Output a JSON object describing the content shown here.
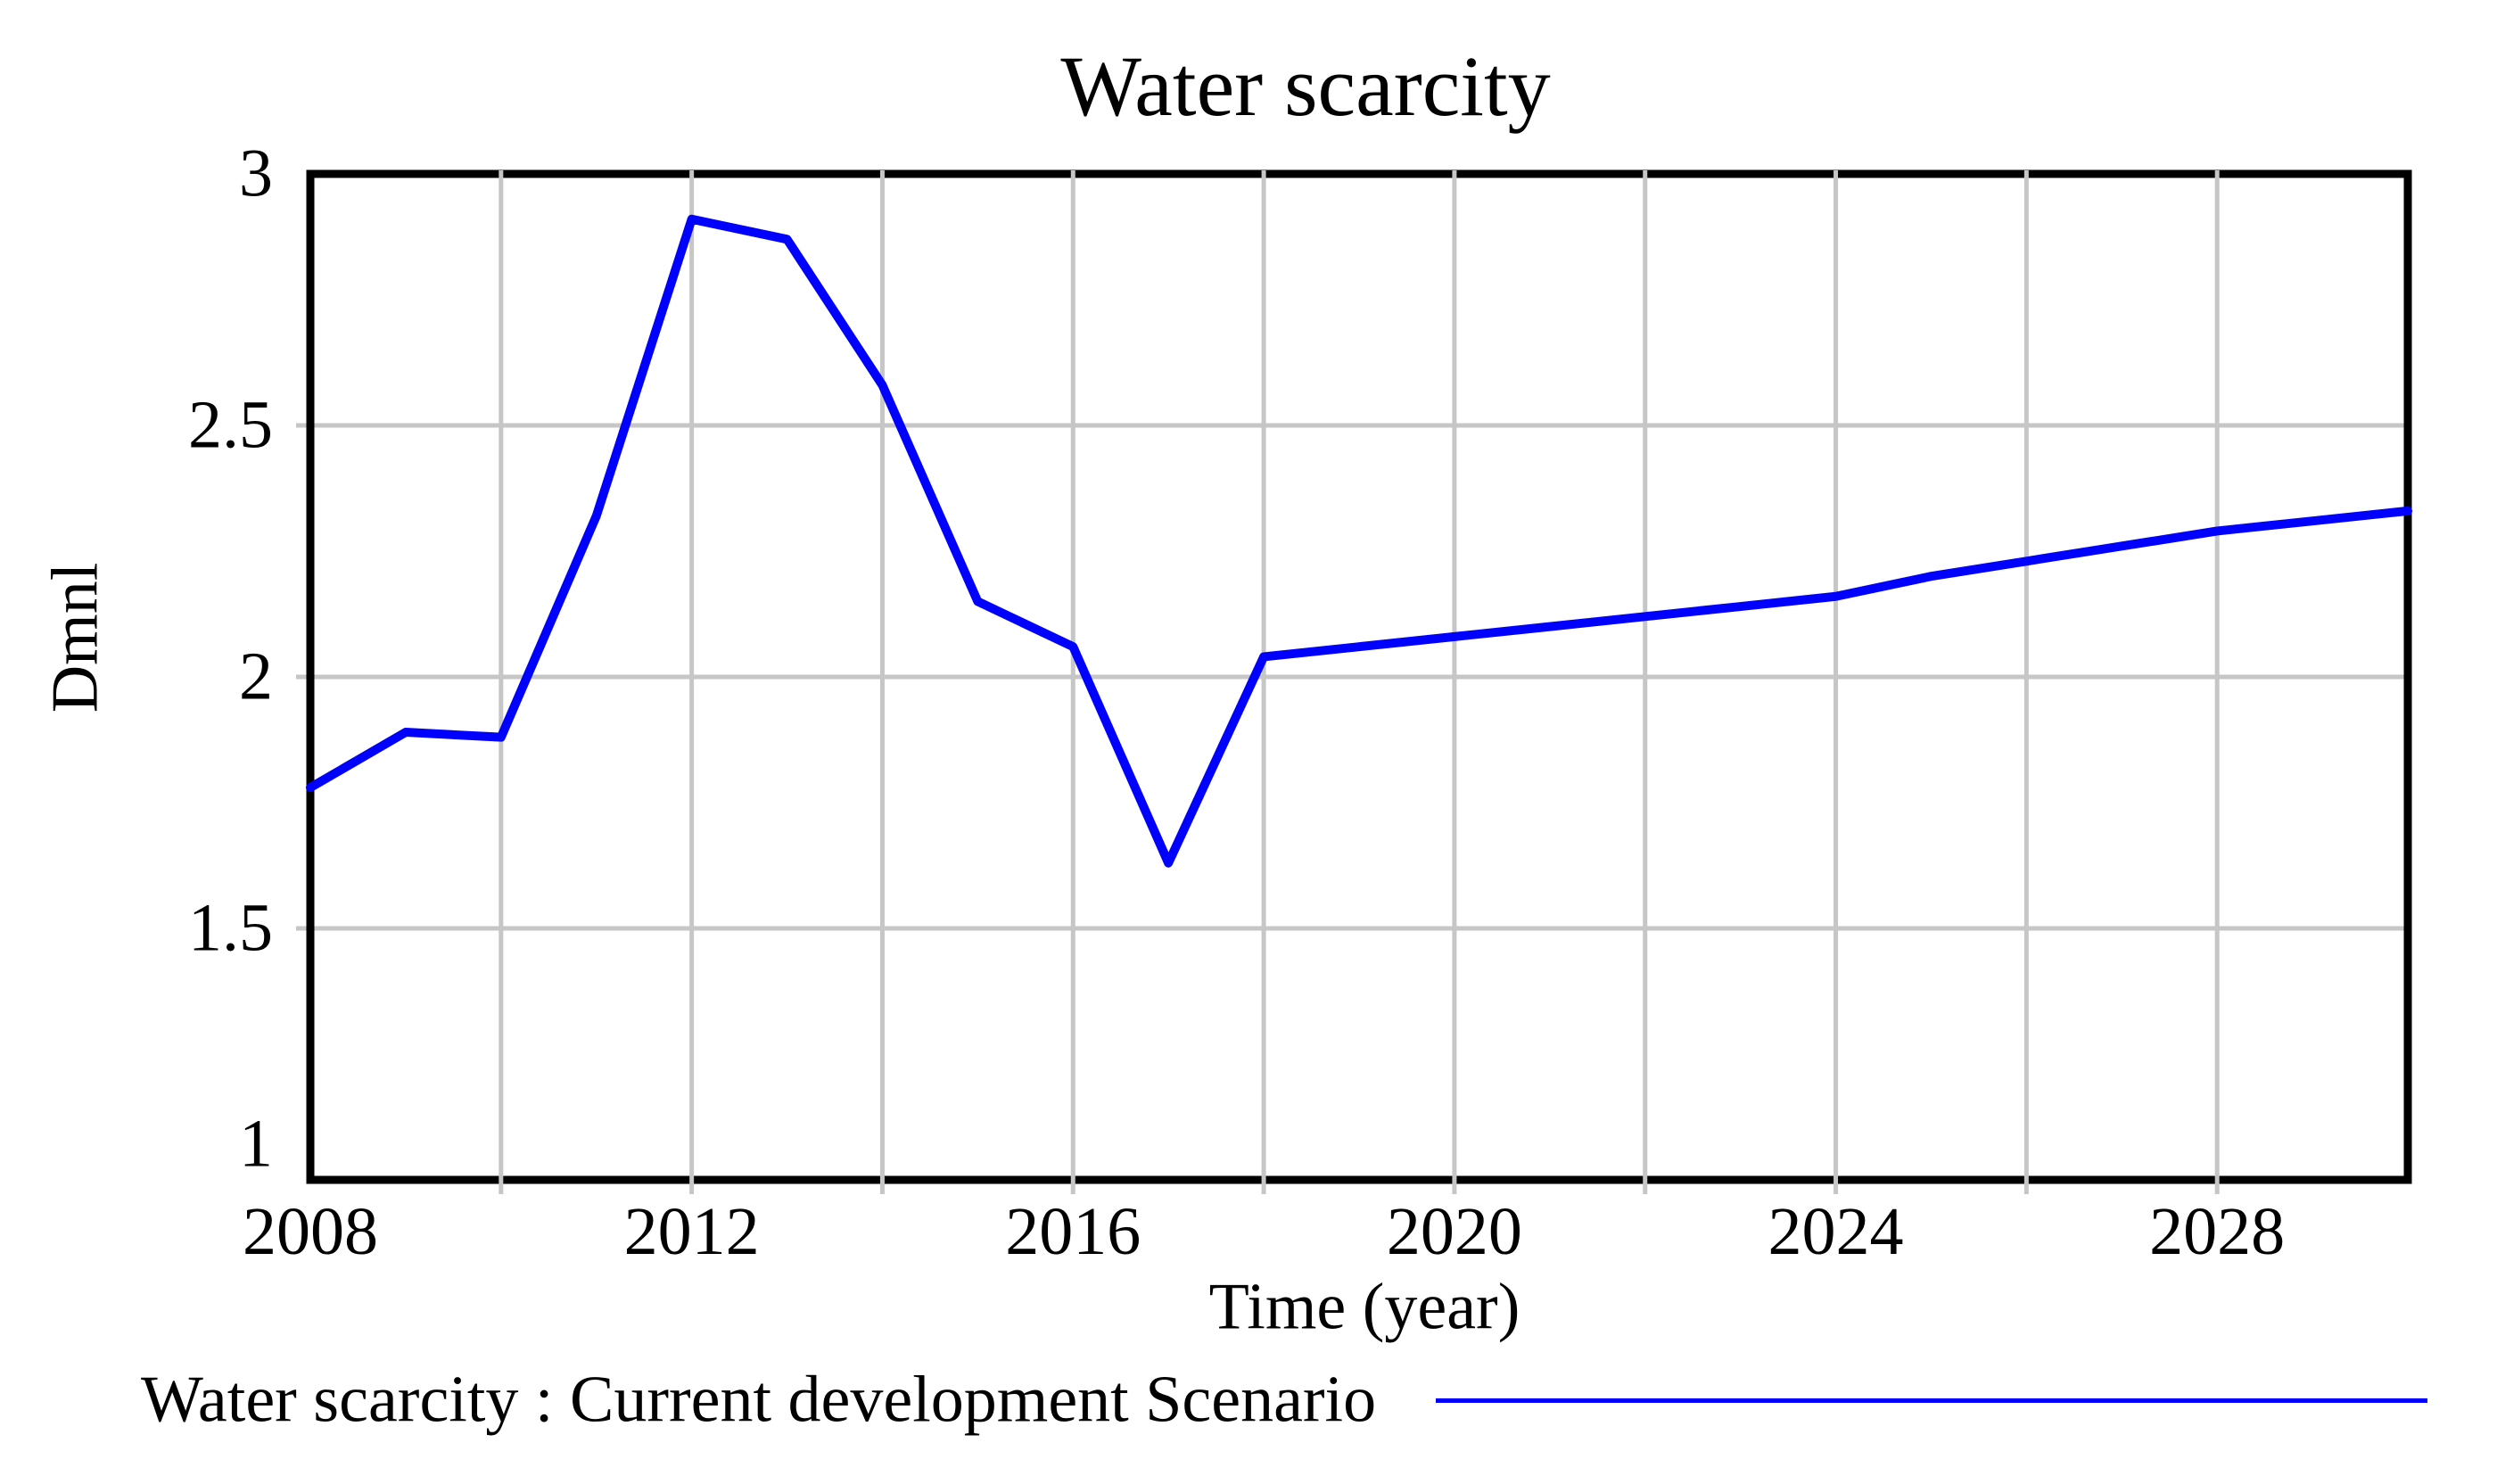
{
  "title": "Water scarcity",
  "chart_data": {
    "type": "line",
    "title": "Water scarcity",
    "xlabel": "Time (year)",
    "ylabel": "Dmnl",
    "x_range": [
      2008,
      2030
    ],
    "y_range": [
      1,
      3
    ],
    "x_ticks": [
      2008,
      2012,
      2016,
      2020,
      2024,
      2028
    ],
    "y_ticks": [
      3,
      2.5,
      2,
      1.5,
      1
    ],
    "y_tick_labels": [
      "3",
      "2.5",
      "2",
      "1.5",
      "1"
    ],
    "x_gridline_years": [
      2010,
      2012,
      2014,
      2016,
      2018,
      2020,
      2022,
      2024,
      2026,
      2028
    ],
    "y_gridline_values": [
      1.5,
      2,
      2.5
    ],
    "grid": true,
    "legend_position": "bottom-left",
    "series": [
      {
        "name": "Water scarcity : Current development Scenario",
        "color": "#0000ff",
        "x": [
          2008,
          2009,
          2010,
          2011,
          2012,
          2013,
          2014,
          2015,
          2016,
          2017,
          2018,
          2019,
          2020,
          2021,
          2022,
          2023,
          2024,
          2025,
          2026,
          2027,
          2028,
          2029,
          2030
        ],
        "values": [
          1.78,
          1.89,
          1.88,
          2.32,
          2.91,
          2.87,
          2.58,
          2.15,
          2.06,
          1.63,
          2.04,
          2.06,
          2.08,
          2.1,
          2.12,
          2.14,
          2.16,
          2.2,
          2.23,
          2.26,
          2.29,
          2.31,
          2.33
        ]
      }
    ]
  },
  "legend": {
    "label": "Water scarcity : Current development Scenario"
  },
  "colors": {
    "line": "#0000ff",
    "grid": "#c6c6c6",
    "frame": "#000000",
    "background": "#ffffff",
    "text": "#000000"
  }
}
